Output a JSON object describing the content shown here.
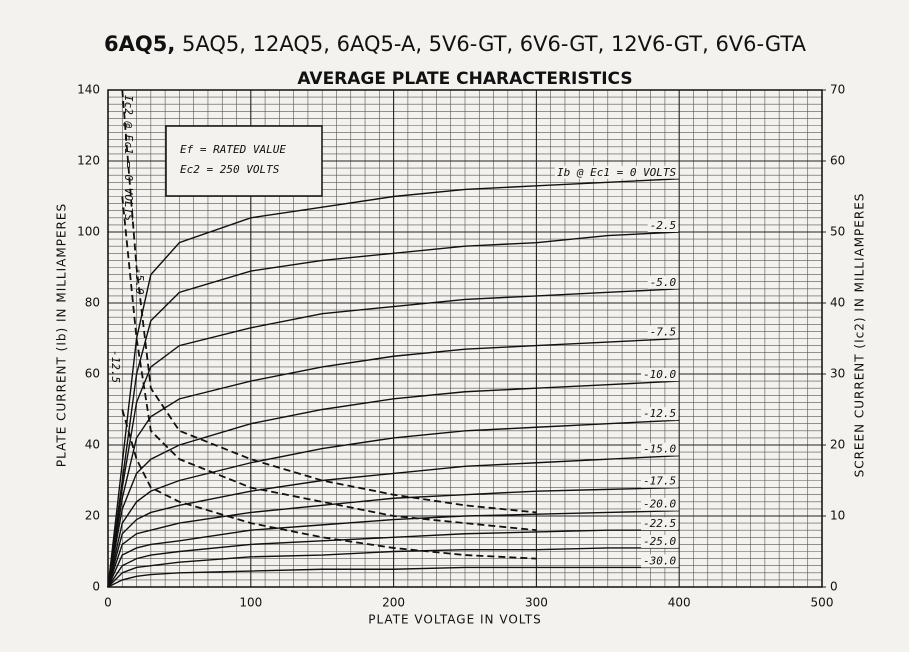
{
  "chart_data": {
    "type": "line",
    "title_bold": "6AQ5,",
    "title": "5AQ5, 12AQ5, 6AQ5-A, 5V6-GT, 6V6-GT, 12V6-GT, 6V6-GTA",
    "subtitle": "AVERAGE PLATE CHARACTERISTICS",
    "xlabel": "PLATE VOLTAGE IN VOLTS",
    "ylabel": "PLATE CURRENT (Ib) IN MILLIAMPERES",
    "y2label": "SCREEN CURRENT (Ic2) IN MILLIAMPERES",
    "annotations": [
      "Ef = RATED VALUE",
      "Ec2 = 250 VOLTS"
    ],
    "xlim": [
      0,
      500
    ],
    "xticks": [
      0,
      100,
      200,
      300,
      400,
      500
    ],
    "ylim": [
      0,
      140
    ],
    "yticks": [
      0,
      20,
      40,
      60,
      80,
      100,
      120,
      140
    ],
    "y2lim": [
      0,
      70
    ],
    "y2ticks": [
      0,
      10,
      20,
      30,
      40,
      50,
      60,
      70
    ],
    "grid": true,
    "minor_grid": true,
    "x": [
      0,
      10,
      20,
      30,
      50,
      100,
      150,
      200,
      250,
      300,
      350,
      400
    ],
    "series": [
      {
        "name": "Ib @ Ec1 = 0 VOLTS",
        "color": "#111111",
        "values": [
          0,
          35,
          70,
          88,
          97,
          104,
          107,
          110,
          112,
          113,
          114,
          115
        ]
      },
      {
        "name": "-2.5",
        "color": "#111111",
        "values": [
          0,
          30,
          60,
          75,
          83,
          89,
          92,
          94,
          96,
          97,
          99,
          100
        ]
      },
      {
        "name": "-5.0",
        "color": "#111111",
        "values": [
          0,
          28,
          52,
          62,
          68,
          73,
          77,
          79,
          81,
          82,
          83,
          84
        ]
      },
      {
        "name": "-7.5",
        "color": "#111111",
        "values": [
          0,
          25,
          42,
          48,
          53,
          58,
          62,
          65,
          67,
          68,
          69,
          70
        ]
      },
      {
        "name": "-10.0",
        "color": "#111111",
        "values": [
          0,
          22,
          32,
          36,
          40,
          46,
          50,
          53,
          55,
          56,
          57,
          58
        ]
      },
      {
        "name": "-12.5",
        "color": "#111111",
        "values": [
          0,
          18,
          24,
          27,
          30,
          35,
          39,
          42,
          44,
          45,
          46,
          47
        ]
      },
      {
        "name": "-15.0",
        "color": "#111111",
        "values": [
          0,
          15,
          19,
          21,
          23,
          27,
          30,
          32,
          34,
          35,
          36,
          37
        ]
      },
      {
        "name": "-17.5",
        "color": "#111111",
        "values": [
          0,
          12,
          15,
          16,
          18,
          21,
          23,
          25,
          26,
          27,
          27.5,
          28
        ]
      },
      {
        "name": "-20.0",
        "color": "#111111",
        "values": [
          0,
          9,
          11,
          12,
          13,
          16,
          17.5,
          19,
          20,
          20.5,
          21,
          21.5
        ]
      },
      {
        "name": "-22.5",
        "color": "#111111",
        "values": [
          0,
          6,
          8,
          9,
          10,
          12,
          13,
          14,
          15,
          15.5,
          16,
          16
        ]
      },
      {
        "name": "-25.0",
        "color": "#111111",
        "values": [
          0,
          4,
          5.5,
          6,
          7,
          8.5,
          9,
          10,
          10.5,
          10.5,
          11,
          11
        ]
      },
      {
        "name": "-30.0",
        "color": "#111111",
        "values": [
          0,
          2,
          3,
          3.5,
          4,
          4.5,
          5,
          5,
          5.5,
          5.5,
          5.5,
          5.5
        ]
      },
      {
        "name": "Ic2 @ Ec1 = 0 VOLTS",
        "color": "#111111",
        "axis": "y2",
        "dashed": true,
        "x": [
          10,
          20,
          30,
          50,
          100,
          150,
          200,
          250,
          300
        ],
        "values": [
          70,
          45,
          28,
          22,
          18,
          15,
          13,
          11.5,
          10.5
        ]
      },
      {
        "name": "-5.0",
        "color": "#111111",
        "axis": "y2",
        "dashed": true,
        "x": [
          10,
          20,
          30,
          50,
          100,
          150,
          200,
          250,
          300
        ],
        "values": [
          55,
          35,
          22,
          18,
          14,
          12,
          10,
          9,
          8
        ]
      },
      {
        "name": "-12.5",
        "color": "#111111",
        "axis": "y2",
        "dashed": true,
        "x": [
          10,
          20,
          30,
          50,
          100,
          150,
          200,
          250,
          300
        ],
        "values": [
          25,
          18,
          14,
          12,
          9,
          7,
          5.5,
          4.5,
          4
        ]
      }
    ]
  }
}
